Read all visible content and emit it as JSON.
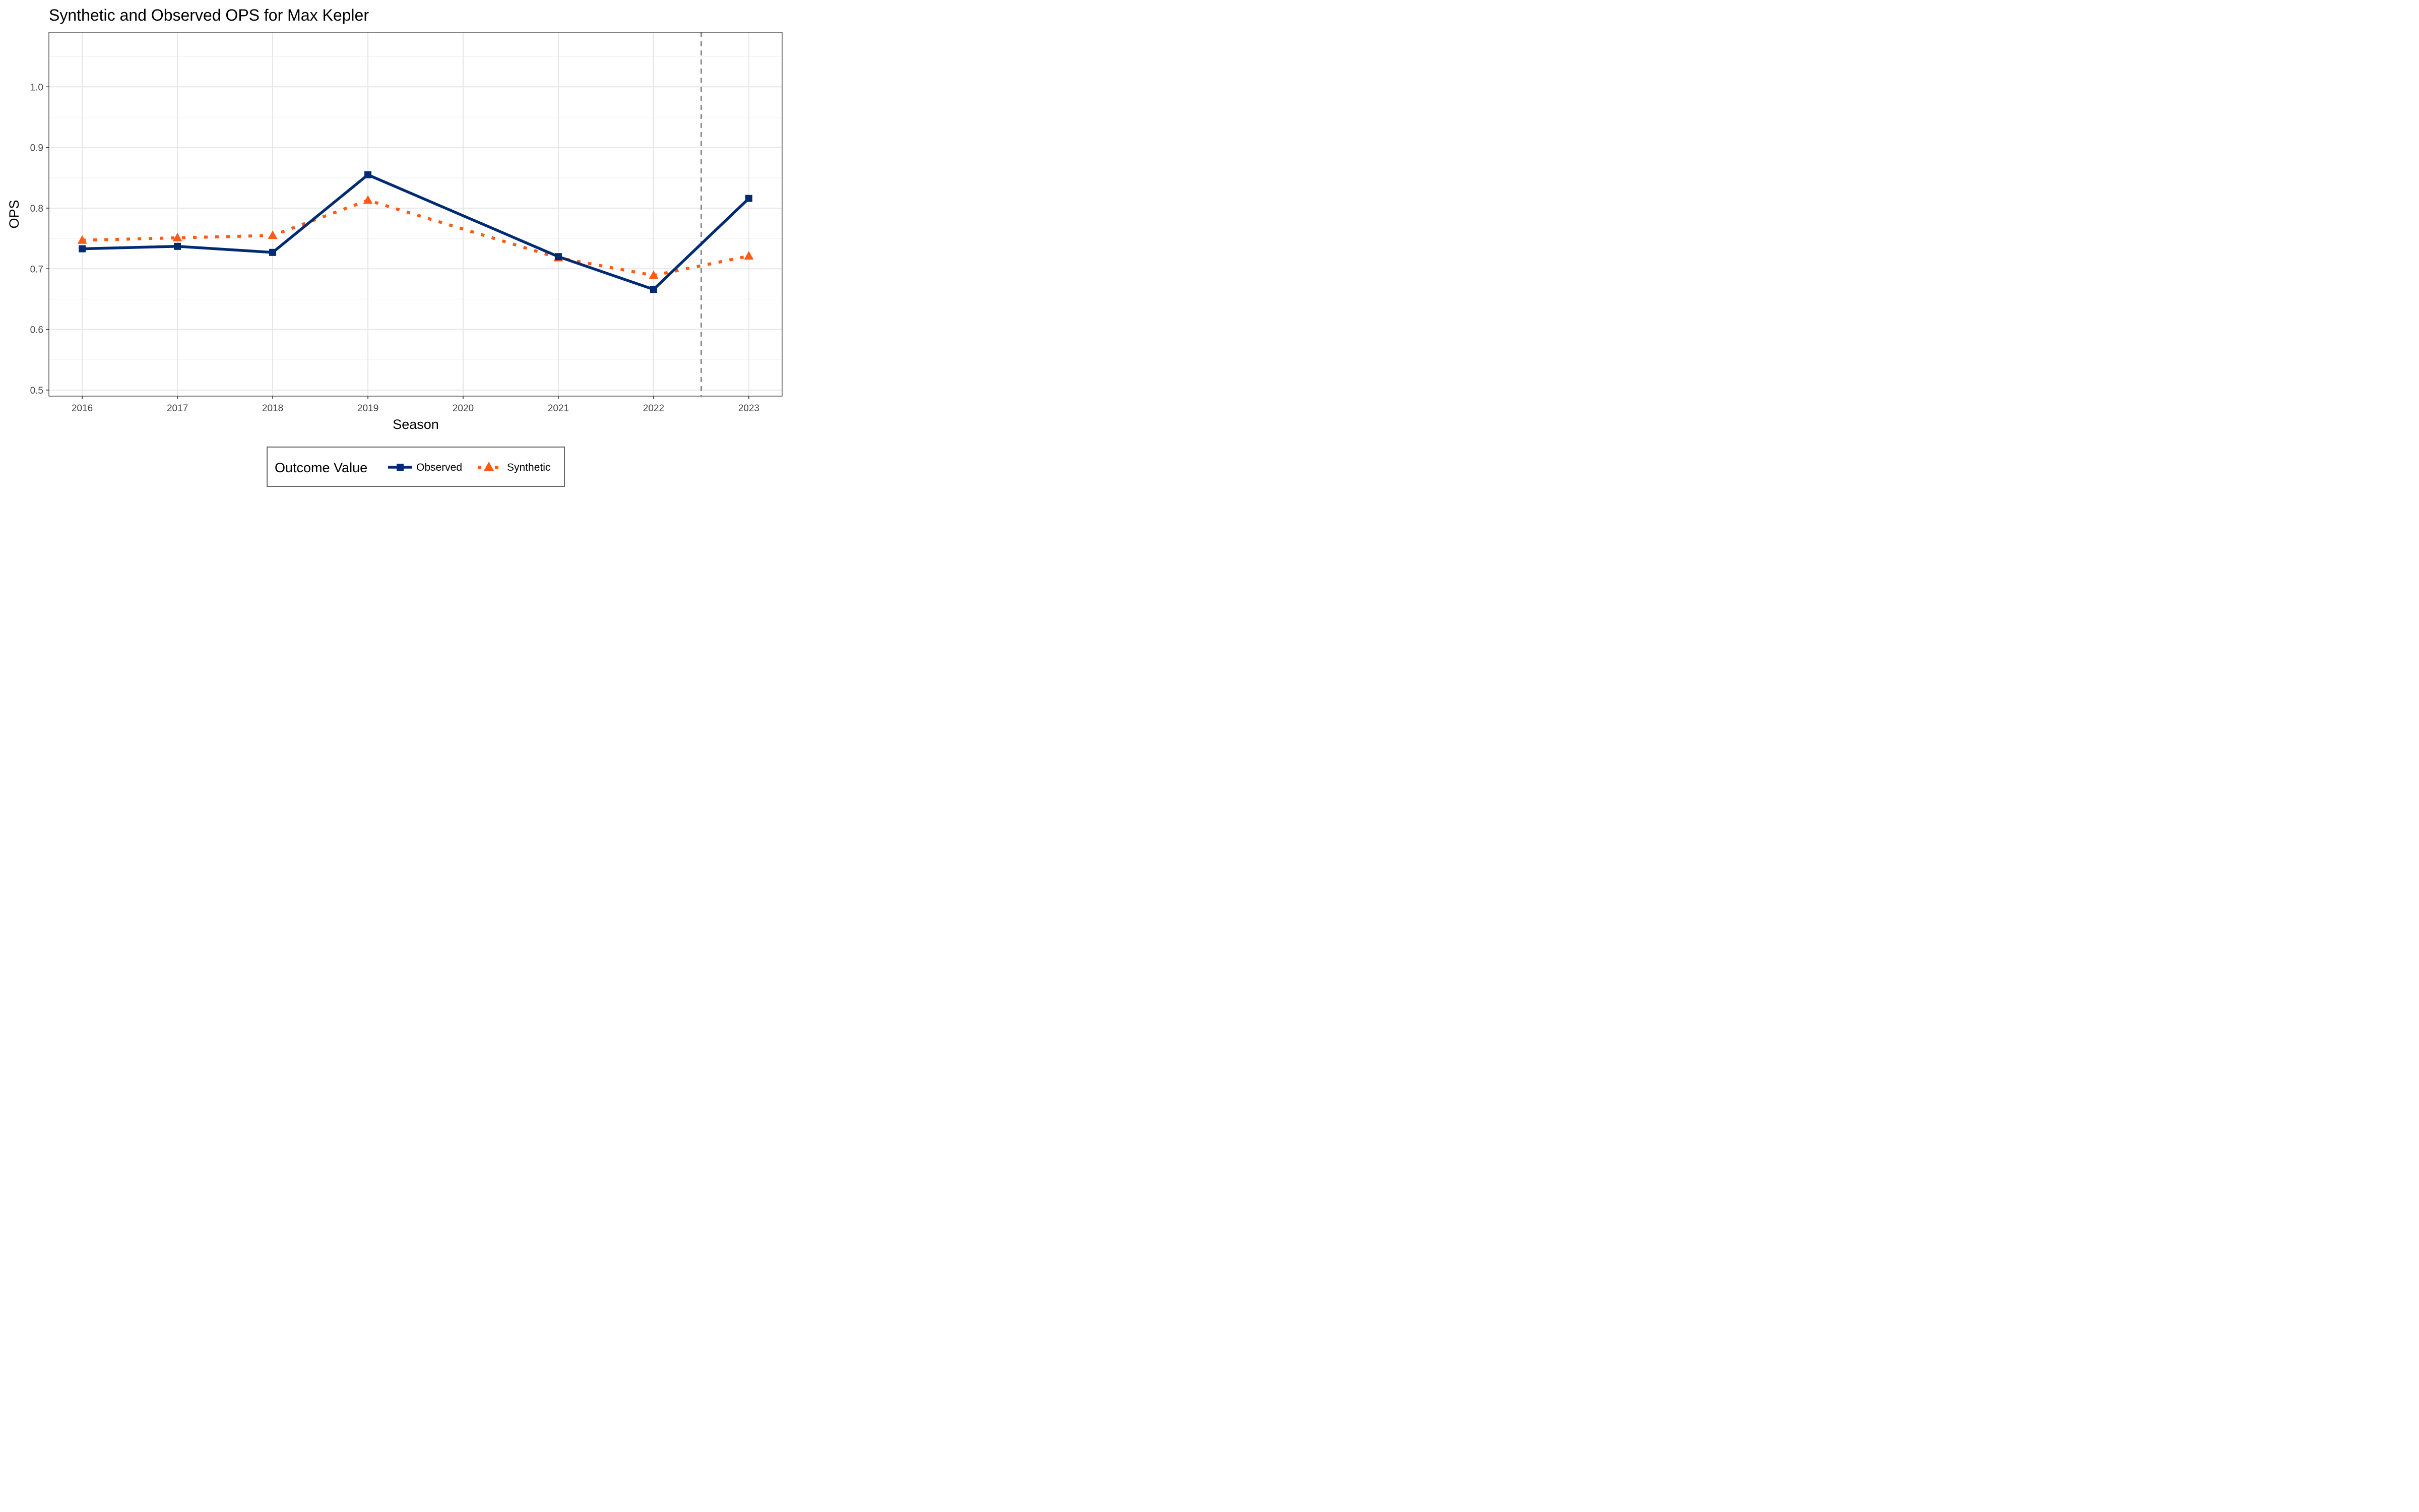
{
  "chart_data": {
    "type": "line",
    "title": "Synthetic and Observed OPS for Max Kepler",
    "xlabel": "Season",
    "ylabel": "OPS",
    "x": [
      2016,
      2017,
      2018,
      2019,
      2020,
      2021,
      2022,
      2023
    ],
    "xlim": [
      2015.65,
      2023.35
    ],
    "ylim": [
      0.49,
      1.09
    ],
    "yticks": [
      "0.5",
      "0.6",
      "0.7",
      "0.8",
      "0.9",
      "1.0"
    ],
    "xticks": [
      "2016",
      "2017",
      "2018",
      "2019",
      "2020",
      "2021",
      "2022",
      "2023"
    ],
    "grid": true,
    "vline": 2022.5,
    "series": [
      {
        "name": "Observed",
        "color": "#002B73",
        "marker": "square",
        "linestyle": "solid",
        "points": [
          [
            2016,
            0.733
          ],
          [
            2017,
            0.737
          ],
          [
            2018,
            0.727
          ],
          [
            2019,
            0.855
          ],
          [
            2021,
            0.72
          ],
          [
            2022,
            0.666
          ],
          [
            2023,
            0.816
          ]
        ]
      },
      {
        "name": "Synthetic",
        "color": "#FF5A12",
        "marker": "triangle",
        "linestyle": "dotted",
        "points": [
          [
            2016,
            0.747
          ],
          [
            2017,
            0.751
          ],
          [
            2018,
            0.755
          ],
          [
            2019,
            0.813
          ],
          [
            2021,
            0.718
          ],
          [
            2022,
            0.689
          ],
          [
            2023,
            0.721
          ]
        ]
      }
    ],
    "legend": {
      "title": "Outcome Value",
      "position": "bottom"
    }
  }
}
